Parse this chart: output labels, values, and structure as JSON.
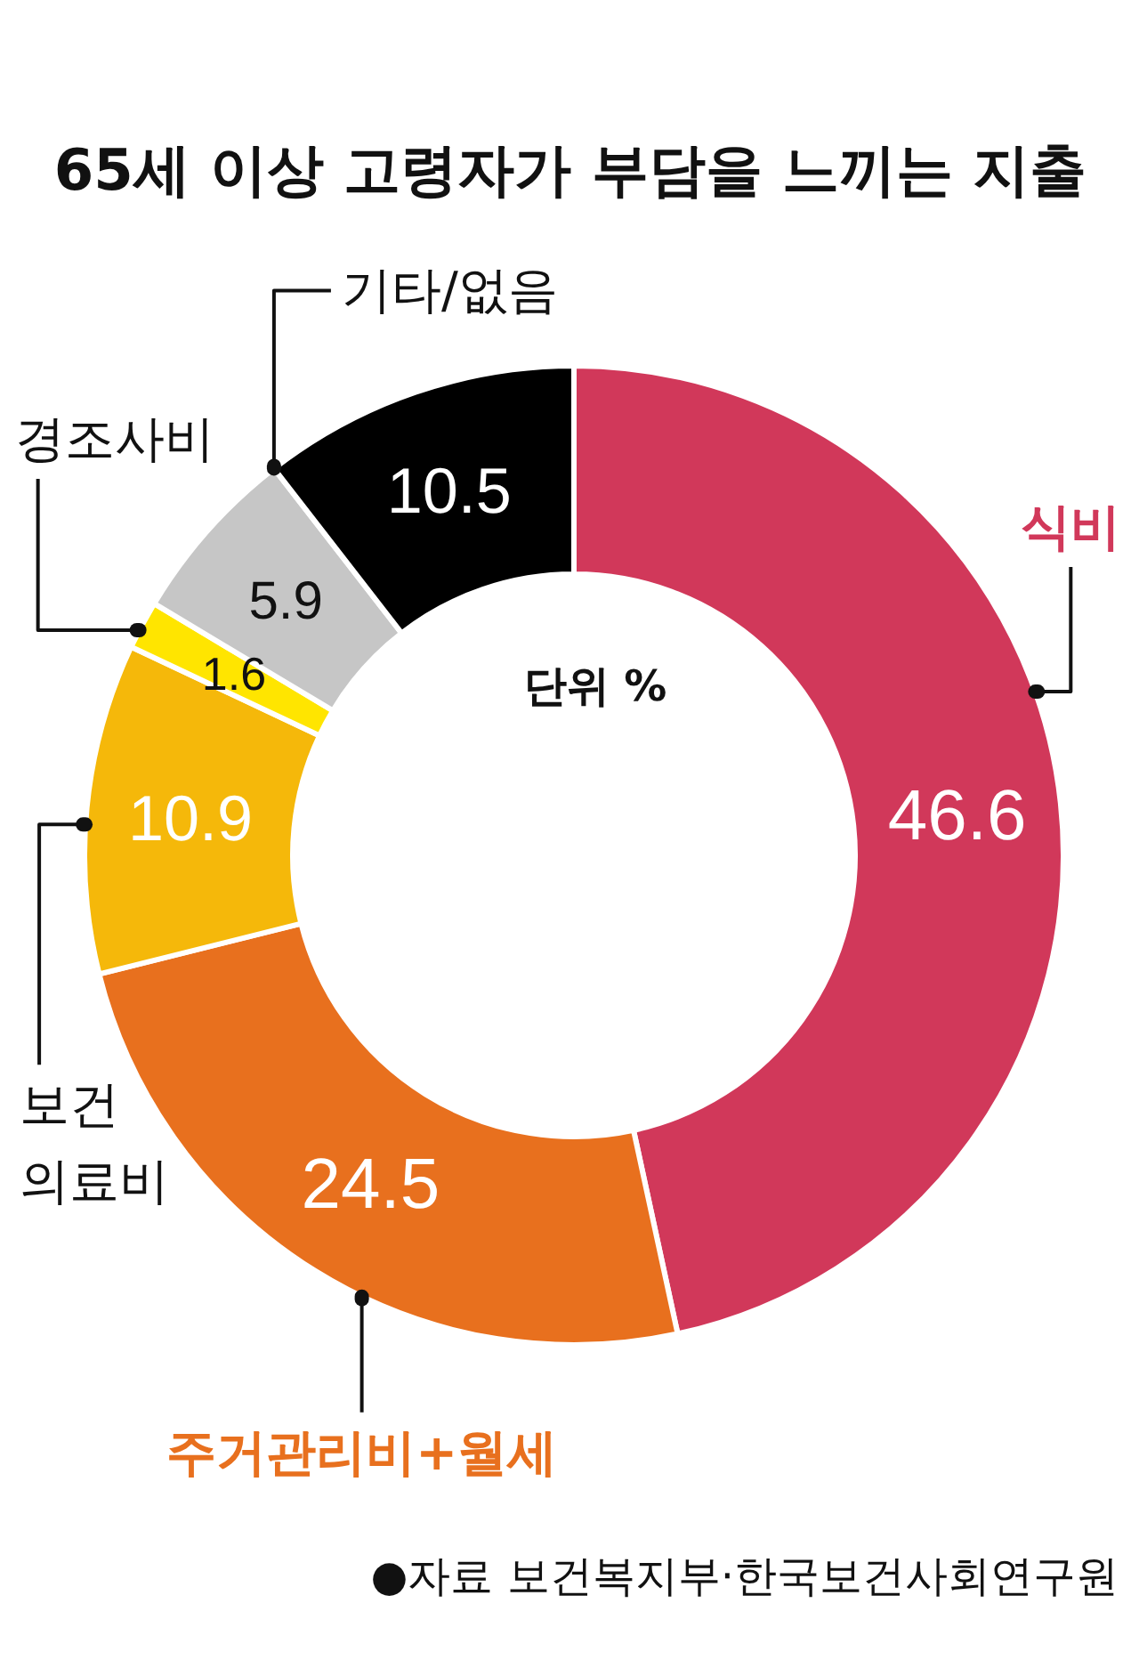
{
  "chart_data": {
    "type": "donut",
    "title": "65세 이상 고령자가 부담을 느끼는 지출",
    "categories": [
      "식비",
      "주거관리비+월세",
      "보건\n의료비",
      "경조사비",
      null,
      "기타/없음"
    ],
    "values": [
      46.6,
      24.5,
      10.9,
      1.6,
      5.9,
      10.5
    ],
    "colors": [
      "#d1385a",
      "#e8701e",
      "#f5b80a",
      "#ffe500",
      "#c6c6c6",
      "#000000"
    ],
    "data_labels": true,
    "annotations": [
      "단위 %",
      "●자료 보건복지부·한국보건사회연구원"
    ]
  }
}
